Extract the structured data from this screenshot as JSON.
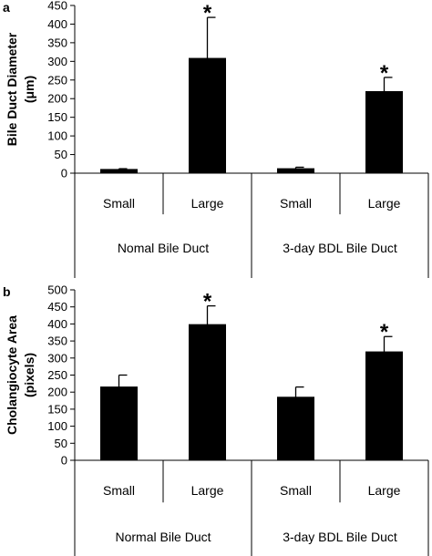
{
  "chart_data": [
    {
      "type": "bar",
      "panel_label": "a",
      "ylabel": [
        "Bile Duct Diameter",
        "(μm)"
      ],
      "ylim": [
        0,
        450
      ],
      "yticks": [
        0,
        50,
        100,
        150,
        200,
        250,
        300,
        350,
        400,
        450
      ],
      "categories": [
        "Small",
        "Large",
        "Small",
        "Large"
      ],
      "groups": [
        "Nomal Bile Duct",
        "3-day BDL Bile Duct"
      ],
      "values": [
        10,
        308,
        12,
        219
      ],
      "errors": [
        2,
        110,
        4,
        38
      ],
      "significance": [
        "",
        "*",
        "",
        "*"
      ],
      "bar_color": "#000000"
    },
    {
      "type": "bar",
      "panel_label": "b",
      "ylabel": [
        "Cholangiocyte Area",
        "(pixels)"
      ],
      "ylim": [
        0,
        500
      ],
      "yticks": [
        0,
        50,
        100,
        150,
        200,
        250,
        300,
        350,
        400,
        450,
        500
      ],
      "categories": [
        "Small",
        "Large",
        "Small",
        "Large"
      ],
      "groups": [
        "Normal Bile Duct",
        "3-day BDL Bile Duct"
      ],
      "values": [
        215,
        398,
        185,
        318
      ],
      "errors": [
        35,
        55,
        30,
        45
      ],
      "significance": [
        "",
        "*",
        "",
        "*"
      ],
      "bar_color": "#000000"
    }
  ]
}
